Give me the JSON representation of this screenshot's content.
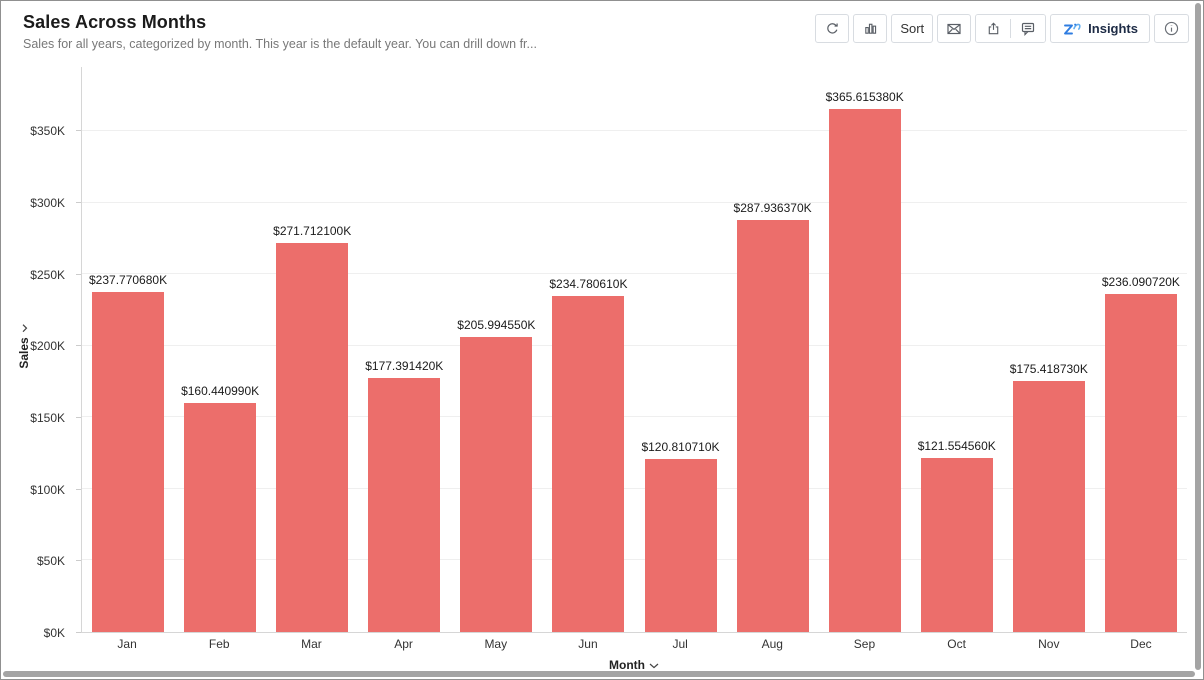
{
  "header": {
    "title": "Sales Across Months",
    "subtitle": "Sales for all years, categorized by month. This year is the default year. You can drill down fr..."
  },
  "toolbar": {
    "sort_label": "Sort",
    "insights_label": "Insights",
    "icons": {
      "refresh": "circular-refresh-arrow",
      "chart_type": "bar-chart",
      "email": "envelope",
      "share": "export-up-arrow",
      "comment": "speech-bubble",
      "insights_logo": "zia-logo",
      "info": "info-circle"
    }
  },
  "chart_data": {
    "type": "bar",
    "title": "Sales Across Months",
    "categories": [
      "Jan",
      "Feb",
      "Mar",
      "Apr",
      "May",
      "Jun",
      "Jul",
      "Aug",
      "Sep",
      "Oct",
      "Nov",
      "Dec"
    ],
    "values": [
      237.77068,
      160.44099,
      271.7121,
      177.39142,
      205.99455,
      234.78061,
      120.81071,
      287.93637,
      365.61538,
      121.55456,
      175.41873,
      236.09072
    ],
    "value_labels": [
      "$237.770680K",
      "$160.440990K",
      "$271.712100K",
      "$177.391420K",
      "$205.994550K",
      "$234.780610K",
      "$120.810710K",
      "$287.936370K",
      "$365.615380K",
      "$121.554560K",
      "$175.418730K",
      "$236.090720K"
    ],
    "xlabel": "Month",
    "ylabel": "Sales",
    "ylim": [
      0,
      395
    ],
    "yticks": [
      {
        "value": 0,
        "label": "$0K"
      },
      {
        "value": 50,
        "label": "$50K"
      },
      {
        "value": 100,
        "label": "$100K"
      },
      {
        "value": 150,
        "label": "$150K"
      },
      {
        "value": 200,
        "label": "$200K"
      },
      {
        "value": 250,
        "label": "$250K"
      },
      {
        "value": 300,
        "label": "$300K"
      },
      {
        "value": 350,
        "label": "$350K"
      }
    ],
    "grid": true,
    "legend": "none",
    "bar_color": "#ec6e6b"
  },
  "colors": {
    "bar": "#ec6e6b",
    "axis_line": "#d6d6d6",
    "gridline": "#efefef",
    "insights_blue": "#2f7de1",
    "icon_gray": "#5a5f66"
  }
}
